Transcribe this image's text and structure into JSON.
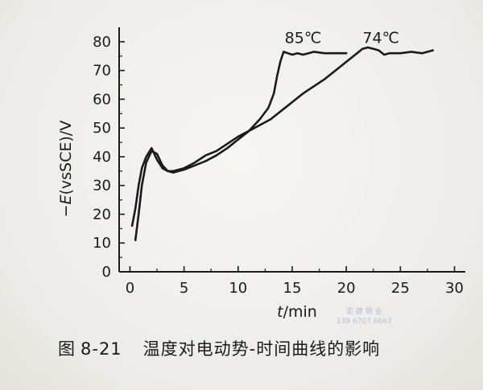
{
  "chart_data": {
    "type": "line",
    "title": "",
    "xlabel_italic": "t",
    "xlabel_unit": "/min",
    "ylabel_sign": "−",
    "ylabel_italic": "E",
    "ylabel_rest": "(vsSCE)/V",
    "xlim": [
      -1,
      31
    ],
    "ylim": [
      0,
      85
    ],
    "xticks": [
      0,
      5,
      10,
      15,
      20,
      25,
      30
    ],
    "yticks": [
      0,
      10,
      20,
      30,
      40,
      50,
      60,
      70,
      80
    ],
    "grid": false,
    "series": [
      {
        "name": "85℃",
        "x": [
          0.2,
          0.5,
          0.8,
          1.1,
          1.5,
          2.0,
          2.5,
          3.0,
          3.5,
          4.0,
          4.5,
          5.0,
          6.0,
          7.0,
          8.0,
          9.0,
          10.0,
          11.0,
          12.0,
          12.8,
          13.3,
          13.6,
          13.9,
          14.2,
          14.6,
          15.0,
          15.5,
          16.0,
          16.5,
          17.0,
          18.0,
          19.0,
          20.0
        ],
        "y": [
          16,
          22,
          30,
          36,
          40,
          43,
          39,
          36,
          35,
          34.5,
          35,
          35.5,
          37,
          38.5,
          40.5,
          43,
          46,
          49,
          53,
          57,
          62,
          68,
          73,
          76.5,
          76,
          75.5,
          76,
          75.5,
          76,
          76.5,
          76,
          76,
          76
        ]
      },
      {
        "name": "74℃",
        "x": [
          0.5,
          0.8,
          1.1,
          1.5,
          2.0,
          2.5,
          3.0,
          3.5,
          4.0,
          4.5,
          5.0,
          6.0,
          7.0,
          8.0,
          9.0,
          10.0,
          11.0,
          12.0,
          13.0,
          14.0,
          15.0,
          16.0,
          17.0,
          18.0,
          19.0,
          20.0,
          21.0,
          21.5,
          22.0,
          22.5,
          23.0,
          23.5,
          24.0,
          25.0,
          26.0,
          27.0,
          28.0
        ],
        "y": [
          11,
          20,
          30,
          38,
          42,
          41,
          37,
          35,
          35,
          35.5,
          36,
          38,
          40.5,
          42,
          44.5,
          47,
          49,
          51,
          53,
          56,
          59,
          62,
          64.5,
          67,
          70,
          73,
          76,
          77.5,
          78,
          77.5,
          77,
          75.5,
          76,
          76,
          76.5,
          76,
          77
        ]
      }
    ],
    "series_labels": [
      {
        "text": "85℃",
        "x": 16.0,
        "y": 79.5
      },
      {
        "text": "74℃",
        "x": 23.2,
        "y": 79.5
      }
    ]
  },
  "caption": {
    "label": "图",
    "number": "8-21",
    "text": "温度对电动势-时间曲线的影响"
  },
  "watermark": {
    "line1": "亚 捷 钢 业",
    "line2": "139 6707 6667"
  },
  "colors": {
    "line": "#1a1a1a",
    "axis": "#1a1a1a",
    "background": "#f1efec"
  }
}
